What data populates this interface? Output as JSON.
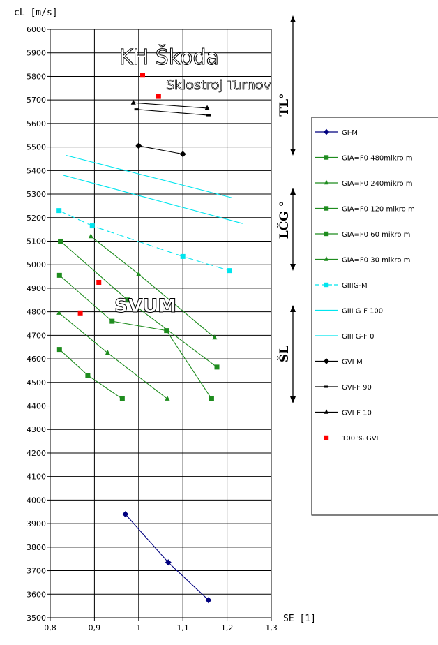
{
  "chart_data": {
    "type": "line",
    "ylabel": "cL [m/s]",
    "xlabel": "SE [1]",
    "xlim": [
      0.8,
      1.3
    ],
    "ylim": [
      3500,
      6000
    ],
    "xticks": [
      "0,8",
      "0,9",
      "1",
      "1,1",
      "1,2",
      "1,3"
    ],
    "yticks": [
      "3500",
      "3600",
      "3700",
      "3800",
      "3900",
      "4000",
      "4100",
      "4200",
      "4300",
      "4400",
      "4500",
      "4600",
      "4700",
      "4800",
      "4900",
      "5000",
      "5100",
      "5200",
      "5300",
      "5400",
      "5500",
      "5600",
      "5700",
      "5800",
      "5900",
      "6000"
    ],
    "grid": true,
    "legend_position": "right",
    "series": [
      {
        "name": "GI-M",
        "color": "#00007f",
        "marker": "diamond",
        "dash": "",
        "points": [
          [
            0.97,
            3940
          ],
          [
            1.067,
            3735
          ],
          [
            1.158,
            3575
          ]
        ]
      },
      {
        "name": "GIA=F0 480mikro m",
        "color": "#1e8c1e",
        "marker": "square",
        "dash": "",
        "points": [
          [
            0.823,
            5100
          ],
          [
            0.975,
            4850
          ],
          [
            1.177,
            4565
          ]
        ]
      },
      {
        "name": "GIA=F0 240mikro m",
        "color": "#1e8c1e",
        "marker": "triangle",
        "dash": "",
        "points": [
          [
            0.892,
            5120
          ],
          [
            1.0,
            4960
          ],
          [
            1.172,
            4690
          ]
        ]
      },
      {
        "name": "GIA=F0 120 mikro m",
        "color": "#1e8c1e",
        "marker": "square",
        "dash": "",
        "points": [
          [
            0.821,
            4955
          ],
          [
            0.94,
            4760
          ],
          [
            1.063,
            4720
          ],
          [
            1.165,
            4430
          ]
        ]
      },
      {
        "name": "GIA=F0 60 mikro m",
        "color": "#1e8c1e",
        "marker": "square",
        "dash": "",
        "points": [
          [
            0.821,
            4640
          ],
          [
            0.885,
            4530
          ],
          [
            0.963,
            4430
          ]
        ]
      },
      {
        "name": "GIA=F0 30 mikro m",
        "color": "#1e8c1e",
        "marker": "triangle",
        "dash": "",
        "points": [
          [
            0.82,
            4795
          ],
          [
            0.93,
            4625
          ],
          [
            1.065,
            4430
          ]
        ]
      },
      {
        "name": "GIIIG-M",
        "color": "#00e5ee",
        "marker": "square",
        "dash": "10,5",
        "points": [
          [
            0.82,
            5230
          ],
          [
            0.895,
            5165
          ],
          [
            1.1,
            5035
          ],
          [
            1.205,
            4975
          ]
        ]
      },
      {
        "name": "GIII G-F 100",
        "color": "#00e5ee",
        "marker": "",
        "dash": "",
        "points": [
          [
            0.835,
            5465
          ],
          [
            1.21,
            5285
          ]
        ]
      },
      {
        "name": "GIII G-F 0",
        "color": "#00e5ee",
        "marker": "",
        "dash": "",
        "points": [
          [
            0.83,
            5380
          ],
          [
            1.235,
            5175
          ]
        ]
      },
      {
        "name": "GVI-M",
        "color": "#000000",
        "marker": "diamond",
        "dash": "",
        "points": [
          [
            1.0,
            5505
          ],
          [
            1.1,
            5470
          ]
        ]
      },
      {
        "name": "GVI-F 90",
        "color": "#000000",
        "marker": "dash",
        "dash": "",
        "points": [
          [
            0.995,
            5660
          ],
          [
            1.158,
            5635
          ]
        ]
      },
      {
        "name": "GVI-F 10",
        "color": "#000000",
        "marker": "triangle",
        "dash": "",
        "points": [
          [
            0.988,
            5688
          ],
          [
            1.155,
            5665
          ]
        ]
      },
      {
        "name": "100 % GVI",
        "color": "#ff0000",
        "marker": "square",
        "dash": "none",
        "points": [
          [
            1.009,
            5805
          ],
          [
            1.045,
            5715
          ],
          [
            0.91,
            4925
          ],
          [
            0.868,
            4795
          ]
        ]
      }
    ],
    "annotations": {
      "skoda": "KH Škoda",
      "sklostroj": "Sklostroj Turnov",
      "svum": "SVUM",
      "region_tl": "TL°",
      "region_lcg": "LČG °",
      "region_sl": "ŠL"
    }
  }
}
